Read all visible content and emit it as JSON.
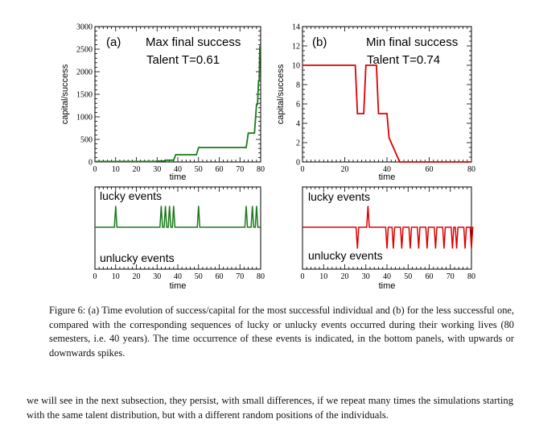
{
  "figure": {
    "caption": "Figure 6: (a) Time evolution of success/capital for the most successful individual and (b) for the less successful one, compared with the corresponding sequences of lucky or unlucky events occurred during their working lives (80 semesters, i.e. 40 years). The time occurrence of these events is indicated, in the bottom panels, with upwards or downwards spikes.",
    "panel_a": {
      "tag": "(a)",
      "title": "Max final success",
      "talent": "Talent T=0.61",
      "ylabel": "capital/success",
      "xlabel": "time",
      "line_color": "#1a7a1a"
    },
    "panel_b": {
      "tag": "(b)",
      "title": "Min final success",
      "talent": "Talent T=0.74",
      "ylabel": "capital/success",
      "xlabel": "time",
      "line_color": "#dd0000"
    },
    "events_a": {
      "lucky_label": "lucky events",
      "unlucky_label": "unlucky events",
      "xlabel": "time"
    },
    "events_b": {
      "lucky_label": "lucky events",
      "unlucky_label": "unlucky events",
      "xlabel": "time"
    }
  },
  "body_text": "we will see in the next subsection, they persist, with small differences, if we repeat many times the simulations starting with the same talent distribution, but with a different random positions of the individuals.",
  "chart_data": [
    {
      "panel": "a",
      "type": "line",
      "xlim": [
        0,
        80
      ],
      "ylim": [
        0,
        3000
      ],
      "xticks": [
        0,
        10,
        20,
        30,
        40,
        50,
        60,
        70,
        80
      ],
      "yticks": [
        0,
        500,
        1000,
        1500,
        2000,
        2500,
        3000
      ],
      "x": [
        0,
        29,
        30,
        33,
        34,
        38,
        39,
        49,
        50,
        73,
        74,
        77,
        78,
        78.5,
        79,
        79.3,
        79.6,
        80
      ],
      "y": [
        10,
        10,
        20,
        20,
        40,
        40,
        160,
        160,
        320,
        320,
        640,
        640,
        1280,
        1280,
        1800,
        1800,
        2560,
        2560
      ]
    },
    {
      "panel": "b",
      "type": "line",
      "xlim": [
        0,
        80
      ],
      "ylim": [
        0,
        14
      ],
      "xticks": [
        0,
        20,
        40,
        60,
        80
      ],
      "yticks": [
        0,
        2,
        4,
        6,
        8,
        10,
        12,
        14
      ],
      "x": [
        0,
        25,
        26,
        29,
        30,
        35,
        36,
        40,
        41,
        46,
        80
      ],
      "y": [
        10,
        10,
        5,
        5,
        10,
        10,
        5,
        5,
        2.5,
        0,
        0
      ]
    },
    {
      "panel": "a-events",
      "type": "line",
      "xlim": [
        0,
        80
      ],
      "xticks": [
        0,
        10,
        20,
        30,
        40,
        50,
        60,
        70,
        80
      ],
      "lucky": [
        10,
        32,
        34,
        36,
        38,
        50,
        73,
        76,
        78
      ],
      "unlucky": []
    },
    {
      "panel": "b-events",
      "type": "line",
      "xlim": [
        0,
        80
      ],
      "xticks": [
        0,
        10,
        20,
        30,
        40,
        50,
        60,
        70,
        80
      ],
      "lucky": [
        31
      ],
      "unlucky": [
        26,
        40,
        43,
        47,
        51,
        55,
        59,
        63,
        67,
        71,
        73,
        77,
        80
      ]
    }
  ]
}
